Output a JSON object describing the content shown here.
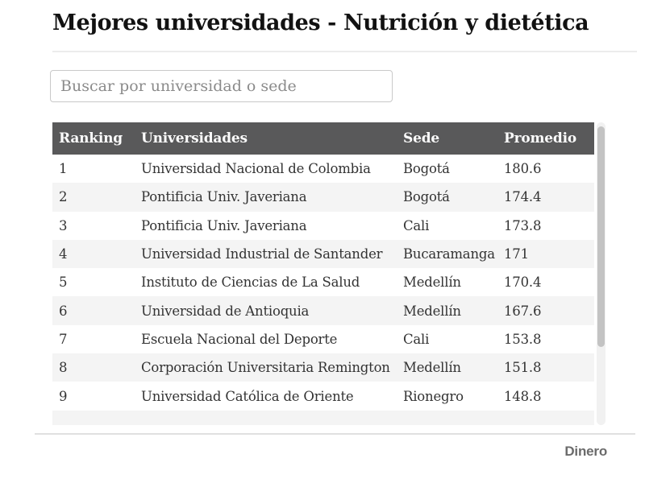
{
  "header": {
    "title": "Mejores universidades - Nutrición y dietética"
  },
  "search": {
    "placeholder": "Buscar por universidad o sede"
  },
  "chart_data": {
    "type": "table",
    "title": "Mejores universidades - Nutrición y dietética",
    "columns": [
      "Ranking",
      "Universidades",
      "Sede",
      "Promedio"
    ],
    "rows": [
      {
        "ranking": "1",
        "universidad": "Universidad Nacional de Colombia",
        "sede": "Bogotá",
        "promedio": "180.6"
      },
      {
        "ranking": "2",
        "universidad": "Pontificia Univ. Javeriana",
        "sede": "Bogotá",
        "promedio": "174.4"
      },
      {
        "ranking": "3",
        "universidad": "Pontificia Univ. Javeriana",
        "sede": "Cali",
        "promedio": "173.8"
      },
      {
        "ranking": "4",
        "universidad": "Universidad Industrial de Santander",
        "sede": "Bucaramanga",
        "promedio": "171"
      },
      {
        "ranking": "5",
        "universidad": "Instituto de Ciencias de La Salud",
        "sede": "Medellín",
        "promedio": "170.4"
      },
      {
        "ranking": "6",
        "universidad": "Universidad de Antioquia",
        "sede": "Medellín",
        "promedio": "167.6"
      },
      {
        "ranking": "7",
        "universidad": "Escuela Nacional del Deporte",
        "sede": "Cali",
        "promedio": "153.8"
      },
      {
        "ranking": "8",
        "universidad": "Corporación Universitaria Remington",
        "sede": "Medellín",
        "promedio": "151.8"
      },
      {
        "ranking": "9",
        "universidad": "Universidad Católica de Oriente",
        "sede": "Rionegro",
        "promedio": "148.8"
      }
    ],
    "layout": {
      "zebra_striping": true,
      "rows_visible": 9,
      "tenth_row_clipped": true,
      "scrollbar": true
    }
  },
  "footer": {
    "brand": "Dinero"
  },
  "colors": {
    "header_bg": "#59595a",
    "header_text": "#fbfbfb",
    "row_text": "#333333",
    "row_alt_bg": "#f4f4f4",
    "title_text": "#121212",
    "placeholder_text": "#8b8b8b",
    "search_border": "#c9c9c9",
    "divider": "#e0e0e0",
    "brand_text": "#6b6b6b",
    "scrollbar_thumb": "#c3c3c3",
    "scrollbar_track": "#f1f1f1"
  }
}
